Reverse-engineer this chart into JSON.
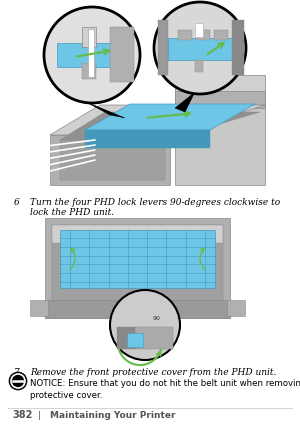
{
  "page_number": "382",
  "separator": "|",
  "footer_text": "Maintaining Your Printer",
  "step6_number": "6",
  "step6_text": "Turn the four PHD lock levers 90-degrees clockwise to lock the PHD unit.",
  "step7_number": "7",
  "step7_text": "Remove the front protective cover from the PHD unit.",
  "notice_label": "NOTICE:",
  "notice_body": " Ensure that you do not hit the belt unit when removing the front\nprotective cover.",
  "background_color": "#ffffff",
  "text_color": "#000000",
  "footer_color": "#555555",
  "step_fontsize": 6.5,
  "footer_fontsize": 6.5,
  "notice_fontsize": 6.2,
  "page_num_fontsize": 7.0,
  "blue_color": "#6ec6e6",
  "blue_dark": "#4499bb",
  "green_color": "#66bb44",
  "gray_light": "#d0d0d0",
  "gray_mid": "#b0b0b0",
  "gray_dark": "#888888",
  "gray_body": "#c8c8c8",
  "white": "#ffffff",
  "black": "#000000"
}
